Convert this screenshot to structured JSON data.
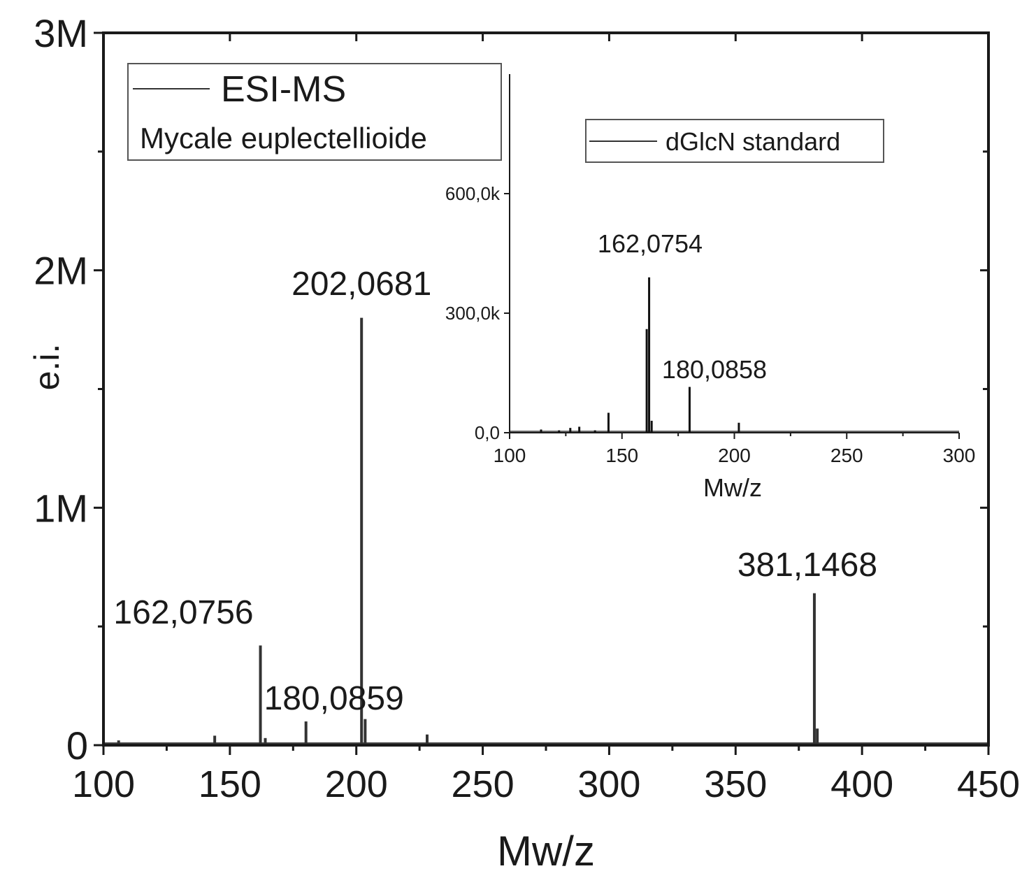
{
  "chart_data": [
    {
      "type": "line",
      "xlabel": "Mw/z",
      "ylabel": "e.i.",
      "xlim": [
        100,
        450
      ],
      "ylim": [
        0,
        3000000
      ],
      "x_ticks": [
        100,
        150,
        200,
        250,
        300,
        350,
        400,
        450
      ],
      "x_tick_labels": [
        "100",
        "150",
        "200",
        "250",
        "300",
        "350",
        "400",
        "450"
      ],
      "y_ticks": [
        0,
        1000000,
        2000000,
        3000000
      ],
      "y_tick_labels": [
        "0",
        "1M",
        "2M",
        "3M"
      ],
      "legend": {
        "position": "top-left",
        "entries": [
          "ESI-MS"
        ],
        "subtitle": "Mycale euplectellioide"
      },
      "series": [
        {
          "name": "ESI-MS",
          "peaks": [
            {
              "x": 162.0756,
              "y": 420000
            },
            {
              "x": 180.0859,
              "y": 100000
            },
            {
              "x": 202.0681,
              "y": 1800000
            },
            {
              "x": 203.5,
              "y": 110000
            },
            {
              "x": 381.1468,
              "y": 640000
            },
            {
              "x": 382.3,
              "y": 70000
            },
            {
              "x": 144,
              "y": 40000
            },
            {
              "x": 164,
              "y": 30000
            },
            {
              "x": 228,
              "y": 45000
            },
            {
              "x": 106,
              "y": 20000
            }
          ]
        }
      ],
      "annotations": [
        {
          "text": "162,0756",
          "x": 162.0756,
          "y": 420000
        },
        {
          "text": "180,0859",
          "x": 180.0859,
          "y": 100000
        },
        {
          "text": "202,0681",
          "x": 202.0681,
          "y": 1800000
        },
        {
          "text": "381,1468",
          "x": 381.1468,
          "y": 640000
        }
      ]
    },
    {
      "type": "line",
      "xlabel": "Mw/z",
      "xlim": [
        100,
        300
      ],
      "ylim": [
        0,
        900000
      ],
      "x_ticks": [
        100,
        150,
        200,
        250,
        300
      ],
      "x_tick_labels": [
        "100",
        "150",
        "200",
        "250",
        "300"
      ],
      "y_ticks": [
        0,
        300000,
        600000
      ],
      "y_tick_labels": [
        "0,0",
        "300,0k",
        "600,0k"
      ],
      "legend": {
        "position": "top-right",
        "entries": [
          "dGlcN standard"
        ]
      },
      "series": [
        {
          "name": "dGlcN standard",
          "peaks": [
            {
              "x": 162.0754,
              "y": 390000
            },
            {
              "x": 161.0,
              "y": 260000
            },
            {
              "x": 163.2,
              "y": 30000
            },
            {
              "x": 180.0858,
              "y": 115000
            },
            {
              "x": 144,
              "y": 50000
            },
            {
              "x": 202,
              "y": 25000
            },
            {
              "x": 131,
              "y": 15000
            },
            {
              "x": 127,
              "y": 12000
            },
            {
              "x": 114,
              "y": 8000
            },
            {
              "x": 122,
              "y": 6000
            },
            {
              "x": 138,
              "y": 6000
            }
          ]
        }
      ],
      "annotations": [
        {
          "text": "162,0754",
          "x": 162.0754,
          "y": 390000
        },
        {
          "text": "180,0858",
          "x": 180.0858,
          "y": 115000
        }
      ]
    }
  ]
}
